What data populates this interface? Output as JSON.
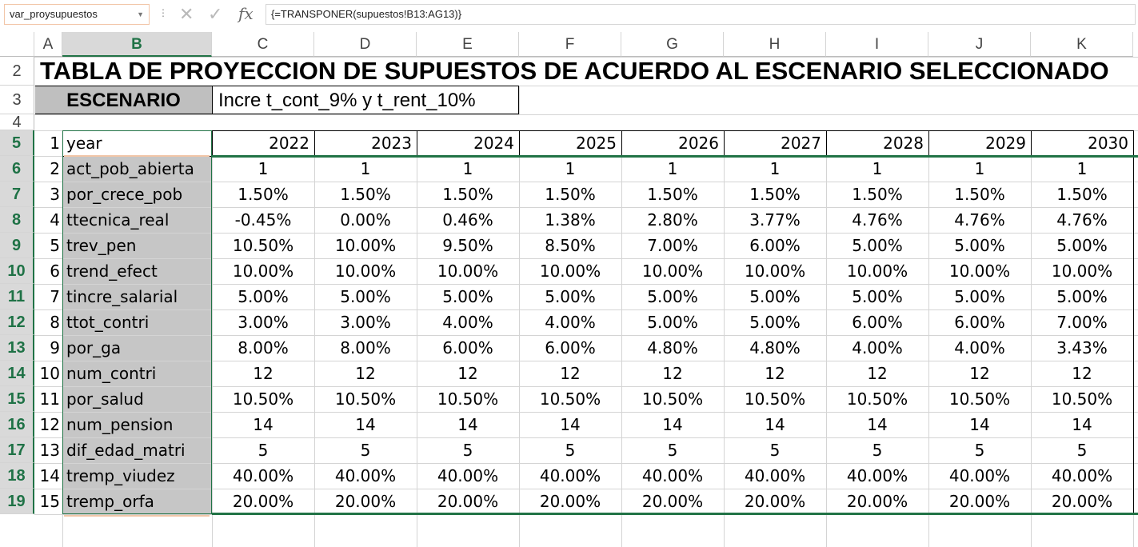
{
  "formula_bar": {
    "name_box": "var_proysupuestos",
    "formula": "{=TRANSPONER(supuestos!B13:AG13)}",
    "cancel_icon": "✕",
    "enter_icon": "✓",
    "fx_label": "fx"
  },
  "columns": [
    "A",
    "B",
    "C",
    "D",
    "E",
    "F",
    "G",
    "H",
    "I",
    "J",
    "K"
  ],
  "rows": [
    "2",
    "3",
    "4",
    "5",
    "6",
    "7",
    "8",
    "9",
    "10",
    "11",
    "12",
    "13",
    "14",
    "15",
    "16",
    "17",
    "18",
    "19"
  ],
  "title": "TABLA DE PROYECCION DE SUPUESTOS DE ACUERDO AL ESCENARIO SELECCIONADO",
  "scenario": {
    "label": "ESCENARIO",
    "value": "Incre t_cont_9% y t_rent_10%"
  },
  "table": {
    "header": {
      "index": "1",
      "name": "year",
      "values": [
        "2022",
        "2023",
        "2024",
        "2025",
        "2026",
        "2027",
        "2028",
        "2029",
        "2030"
      ]
    },
    "rows": [
      {
        "index": "2",
        "name": "act_pob_abierta",
        "values": [
          "1",
          "1",
          "1",
          "1",
          "1",
          "1",
          "1",
          "1",
          "1"
        ]
      },
      {
        "index": "3",
        "name": "por_crece_pob",
        "values": [
          "1.50%",
          "1.50%",
          "1.50%",
          "1.50%",
          "1.50%",
          "1.50%",
          "1.50%",
          "1.50%",
          "1.50%"
        ]
      },
      {
        "index": "4",
        "name": "ttecnica_real",
        "values": [
          "-0.45%",
          "0.00%",
          "0.46%",
          "1.38%",
          "2.80%",
          "3.77%",
          "4.76%",
          "4.76%",
          "4.76%"
        ]
      },
      {
        "index": "5",
        "name": "trev_pen",
        "values": [
          "10.50%",
          "10.00%",
          "9.50%",
          "8.50%",
          "7.00%",
          "6.00%",
          "5.00%",
          "5.00%",
          "5.00%"
        ]
      },
      {
        "index": "6",
        "name": "trend_efect",
        "values": [
          "10.00%",
          "10.00%",
          "10.00%",
          "10.00%",
          "10.00%",
          "10.00%",
          "10.00%",
          "10.00%",
          "10.00%"
        ]
      },
      {
        "index": "7",
        "name": "tincre_salarial",
        "values": [
          "5.00%",
          "5.00%",
          "5.00%",
          "5.00%",
          "5.00%",
          "5.00%",
          "5.00%",
          "5.00%",
          "5.00%"
        ]
      },
      {
        "index": "8",
        "name": "ttot_contri",
        "values": [
          "3.00%",
          "3.00%",
          "4.00%",
          "4.00%",
          "5.00%",
          "5.00%",
          "6.00%",
          "6.00%",
          "7.00%"
        ]
      },
      {
        "index": "9",
        "name": "por_ga",
        "values": [
          "8.00%",
          "8.00%",
          "6.00%",
          "6.00%",
          "4.80%",
          "4.80%",
          "4.00%",
          "4.00%",
          "3.43%"
        ]
      },
      {
        "index": "10",
        "name": "num_contri",
        "values": [
          "12",
          "12",
          "12",
          "12",
          "12",
          "12",
          "12",
          "12",
          "12"
        ]
      },
      {
        "index": "11",
        "name": "por_salud",
        "values": [
          "10.50%",
          "10.50%",
          "10.50%",
          "10.50%",
          "10.50%",
          "10.50%",
          "10.50%",
          "10.50%",
          "10.50%"
        ]
      },
      {
        "index": "12",
        "name": "num_pension",
        "values": [
          "14",
          "14",
          "14",
          "14",
          "14",
          "14",
          "14",
          "14",
          "14"
        ]
      },
      {
        "index": "13",
        "name": "dif_edad_matri",
        "values": [
          "5",
          "5",
          "5",
          "5",
          "5",
          "5",
          "5",
          "5",
          "5"
        ]
      },
      {
        "index": "14",
        "name": "tremp_viudez",
        "values": [
          "40.00%",
          "40.00%",
          "40.00%",
          "40.00%",
          "40.00%",
          "40.00%",
          "40.00%",
          "40.00%",
          "40.00%"
        ]
      },
      {
        "index": "15",
        "name": "tremp_orfa",
        "values": [
          "20.00%",
          "20.00%",
          "20.00%",
          "20.00%",
          "20.00%",
          "20.00%",
          "20.00%",
          "20.00%",
          "20.00%"
        ]
      }
    ]
  },
  "colors": {
    "selection": "#217346",
    "selected_header_bg": "#d9d9d9",
    "column_b_fill": "#c6c6c6"
  }
}
